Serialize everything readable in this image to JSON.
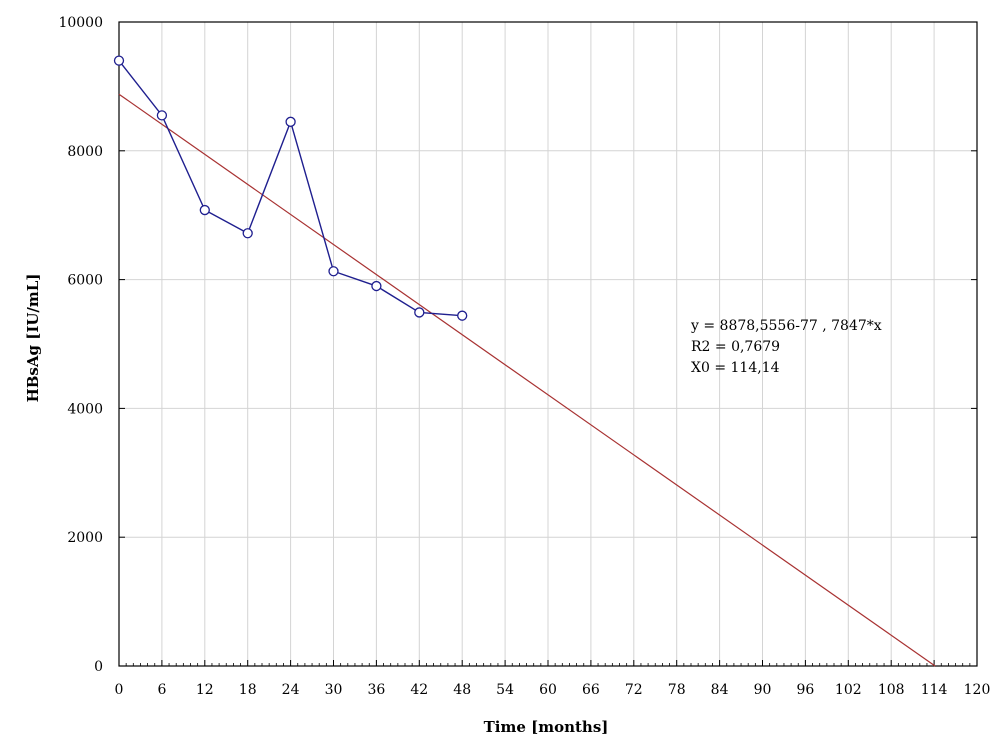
{
  "chart_data": {
    "type": "line",
    "xlabel": "Time [months]",
    "ylabel": "HBsAg [IU/mL]",
    "xlim": [
      0,
      120
    ],
    "ylim": [
      0,
      10000
    ],
    "x_ticks": [
      0,
      6,
      12,
      18,
      24,
      30,
      36,
      42,
      48,
      54,
      60,
      66,
      72,
      78,
      84,
      90,
      96,
      102,
      108,
      114,
      120
    ],
    "y_ticks": [
      0,
      2000,
      4000,
      6000,
      8000,
      10000
    ],
    "grid": true,
    "series": [
      {
        "type": "line-markers",
        "color": "#1f1f8f",
        "marker": "circle",
        "x": [
          0,
          6,
          12,
          18,
          24,
          30,
          36,
          42,
          48
        ],
        "y": [
          9400,
          8550,
          7080,
          6720,
          8450,
          6130,
          5900,
          5490,
          5440
        ]
      }
    ],
    "trendline": {
      "color": "#a83232",
      "x": [
        0,
        114.14
      ],
      "y": [
        8878.5556,
        0
      ]
    },
    "annotations": [
      "y = 8878,5556-77 , 7847*x",
      "R2 = 0,7679",
      "X0 = 114,14"
    ]
  }
}
